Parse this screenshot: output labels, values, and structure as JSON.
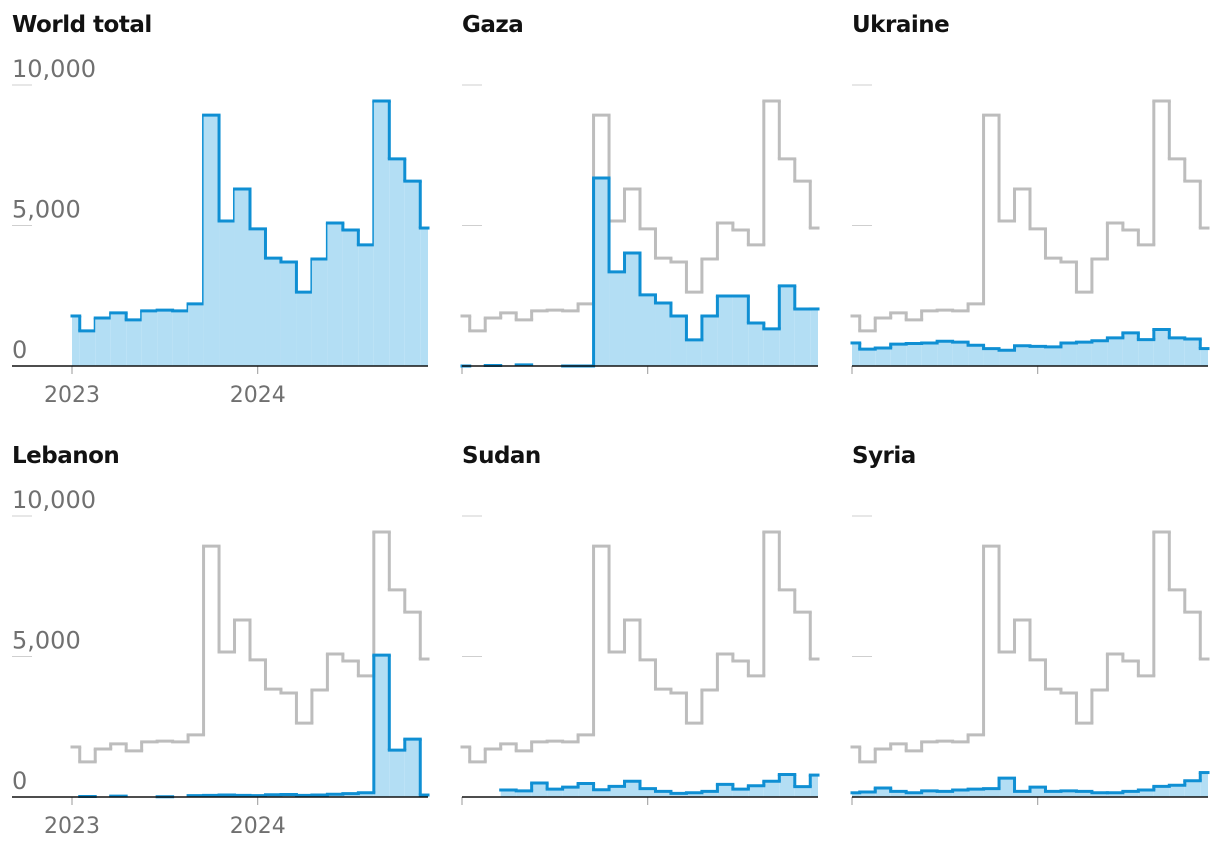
{
  "chart_data": [
    {
      "type": "line",
      "title": "World total",
      "color": "#0f8fd3",
      "values": [
        1780,
        1250,
        1710,
        1890,
        1640,
        1960,
        1990,
        1960,
        2210,
        8930,
        5160,
        6300,
        4880,
        3840,
        3700,
        2630,
        3810,
        5090,
        4840,
        4310,
        9430,
        7370,
        6580,
        4910
      ],
      "ylim": [
        0,
        10000
      ],
      "yticks": [
        0,
        {
          "value": 5000,
          "label": "5,000"
        },
        {
          "value": 10000,
          "label": "10,000"
        }
      ],
      "xlim": [
        2023,
        2024.917
      ],
      "xticks": [
        2023,
        2024
      ]
    },
    {
      "type": "line",
      "title": "Gaza",
      "color": "#0f8fd3",
      "values": [
        0,
        null,
        20,
        null,
        40,
        null,
        null,
        0,
        0,
        6690,
        3350,
        4020,
        2530,
        2240,
        1780,
        930,
        1780,
        2490,
        2490,
        1530,
        1320,
        2850,
        2030,
        2030
      ]
    },
    {
      "type": "line",
      "title": "Ukraine",
      "color": "#0f8fd3",
      "values": [
        820,
        600,
        640,
        780,
        800,
        820,
        880,
        850,
        740,
        620,
        560,
        720,
        700,
        680,
        820,
        850,
        900,
        1000,
        1180,
        940,
        1300,
        1000,
        960,
        620
      ]
    },
    {
      "type": "line",
      "title": "Lebanon",
      "color": "#0f8fd3",
      "values": [
        null,
        20,
        null,
        30,
        null,
        null,
        10,
        null,
        50,
        60,
        70,
        60,
        50,
        80,
        90,
        60,
        70,
        100,
        120,
        150,
        5050,
        1670,
        2060,
        70
      ],
      "ylim": [
        0,
        10000
      ],
      "yticks": [
        0,
        {
          "value": 5000,
          "label": "5,000"
        },
        {
          "value": 10000,
          "label": "10,000"
        }
      ],
      "xlim": [
        2023,
        2024.917
      ],
      "xticks": [
        2023,
        2024
      ]
    },
    {
      "type": "line",
      "title": "Sudan",
      "color": "#0f8fd3",
      "values": [
        null,
        null,
        null,
        250,
        220,
        500,
        280,
        350,
        480,
        260,
        380,
        560,
        300,
        200,
        130,
        150,
        200,
        450,
        280,
        400,
        560,
        800,
        370,
        780
      ]
    },
    {
      "type": "line",
      "title": "Syria",
      "color": "#0f8fd3",
      "values": [
        150,
        180,
        320,
        200,
        150,
        220,
        200,
        250,
        280,
        300,
        670,
        200,
        350,
        200,
        220,
        200,
        150,
        150,
        200,
        250,
        380,
        420,
        580,
        870
      ]
    }
  ]
}
